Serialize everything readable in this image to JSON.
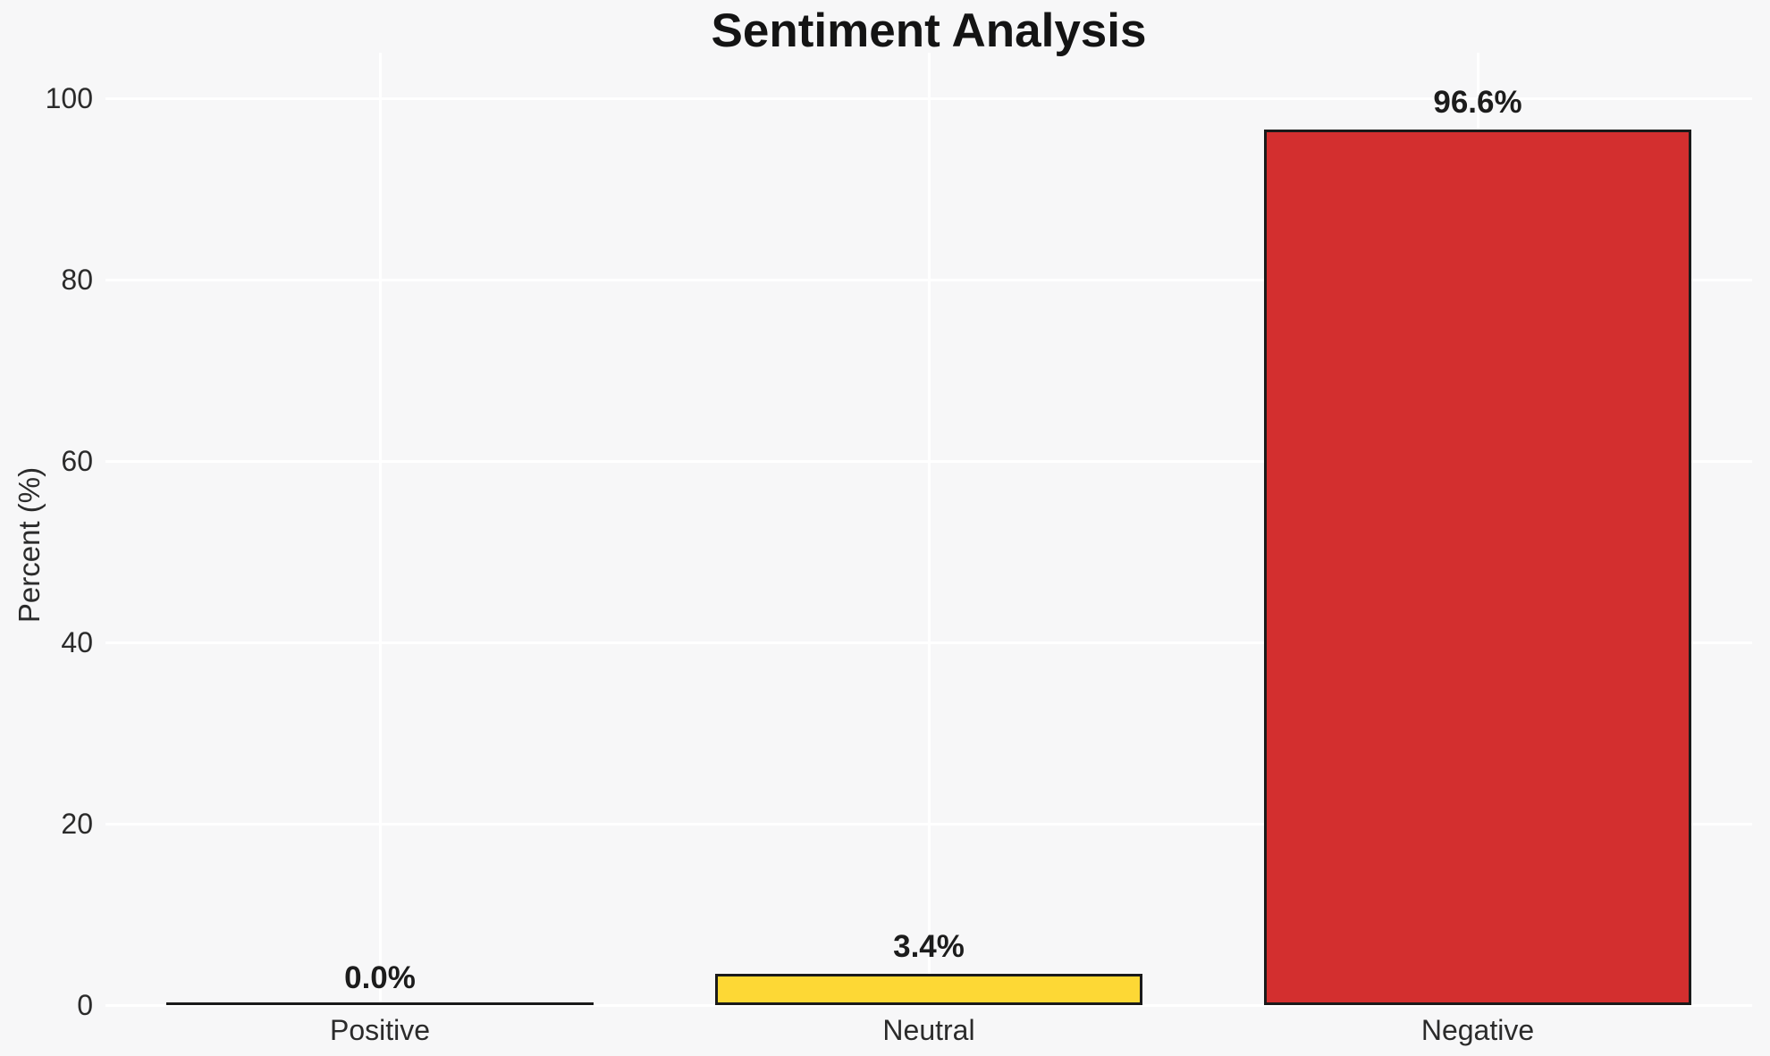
{
  "chart_data": {
    "type": "bar",
    "title": "Sentiment Analysis",
    "ylabel": "Percent (%)",
    "xlabel": "",
    "categories": [
      "Positive",
      "Neutral",
      "Negative"
    ],
    "values": [
      0.0,
      3.4,
      96.6
    ],
    "value_labels": [
      "0.0%",
      "3.4%",
      "96.6%"
    ],
    "bar_colors": [
      null,
      "#FDD835",
      "#D32F2F"
    ],
    "bar_edge_color": "#1A1A1A",
    "yticks": [
      0,
      20,
      40,
      60,
      80,
      100
    ],
    "ylim": [
      0,
      105
    ],
    "grid": true,
    "legend": false,
    "background_color": "#F7F7F8",
    "gridline_color": "#FFFFFF"
  }
}
